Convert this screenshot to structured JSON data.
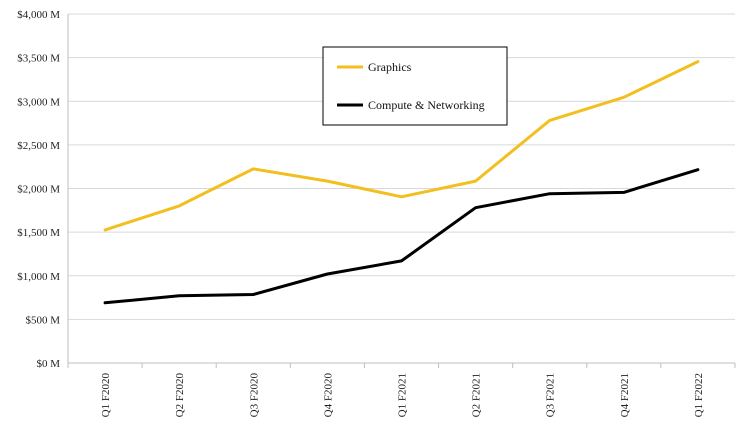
{
  "chart_data": {
    "type": "line",
    "title": "",
    "xlabel": "",
    "ylabel": "",
    "categories": [
      "Q1 F2020",
      "Q2 F2020",
      "Q3 F2020",
      "Q4 F2020",
      "Q1 F2021",
      "Q2 F2021",
      "Q3 F2021",
      "Q4 F2021",
      "Q1 F2022"
    ],
    "ylim": [
      0,
      4000
    ],
    "yticks": [
      0,
      500,
      1000,
      1500,
      2000,
      2500,
      3000,
      3500,
      4000
    ],
    "ytick_labels": [
      "$0 M",
      "$500 M",
      "$1,000 M",
      "$1,500 M",
      "$2,000 M",
      "$2,500 M",
      "$3,000 M",
      "$3,500 M",
      "$4,000 M"
    ],
    "grid": true,
    "legend_position": "top-center",
    "series": [
      {
        "name": "Graphics",
        "color": "#F2BF1F",
        "values": [
          1525,
          1800,
          2225,
          2085,
          1905,
          2085,
          2780,
          3045,
          3455
        ]
      },
      {
        "name": "Compute & Networking",
        "color": "#000000",
        "values": [
          690,
          770,
          785,
          1020,
          1170,
          1780,
          1940,
          1955,
          2215
        ]
      }
    ]
  }
}
